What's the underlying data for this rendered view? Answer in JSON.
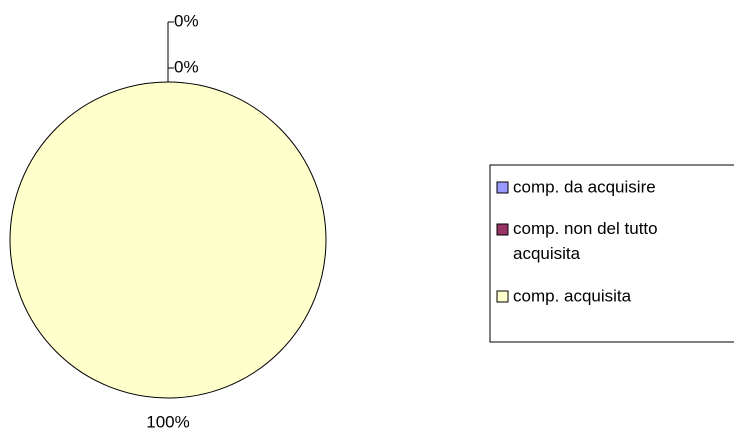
{
  "chart_data": {
    "type": "pie",
    "categories": [
      "comp. da acquisire",
      "comp. non del tutto acquisita",
      "comp. acquisita"
    ],
    "values": [
      0,
      0,
      100
    ],
    "value_labels": [
      "0%",
      "0%",
      "100%"
    ],
    "colors": [
      "#9999ff",
      "#993366",
      "#ffffcc"
    ],
    "legend": "right"
  }
}
